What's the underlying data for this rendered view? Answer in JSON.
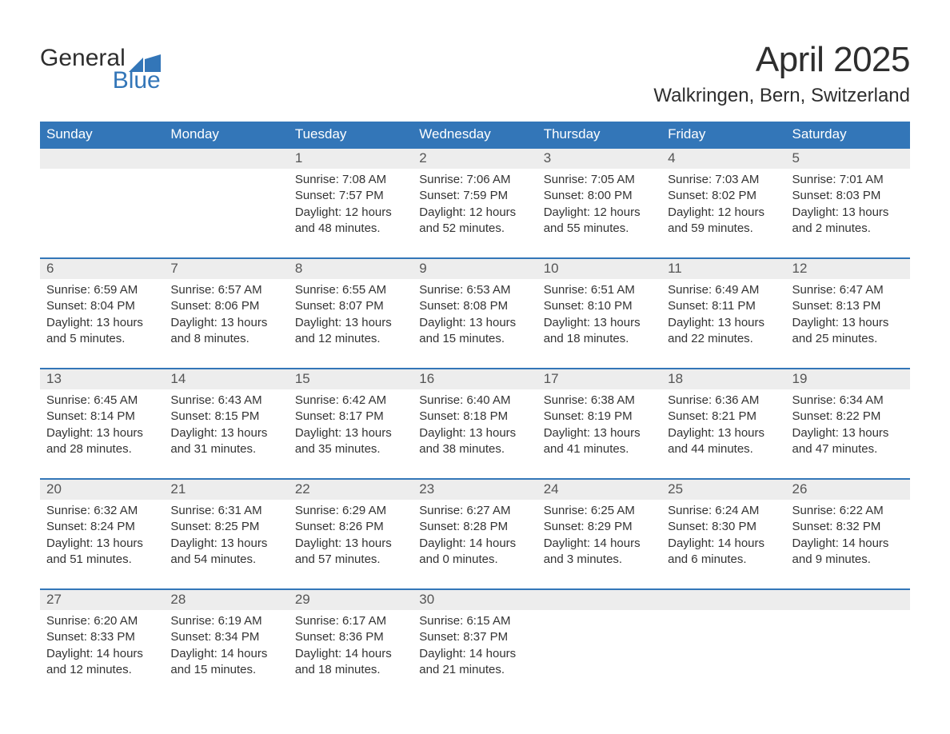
{
  "logo": {
    "text1": "General",
    "text2": "Blue",
    "flag_color": "#3376b8"
  },
  "title": "April 2025",
  "subtitle": "Walkringen, Bern, Switzerland",
  "colors": {
    "header_bg": "#3376b8",
    "header_text": "#ffffff",
    "daynum_bg": "#ededed",
    "daynum_text": "#555555",
    "body_text": "#333333",
    "week_divider": "#3376b8",
    "page_bg": "#ffffff",
    "logo_dark": "#2e2e2e",
    "logo_blue": "#3376b8"
  },
  "day_headers": [
    "Sunday",
    "Monday",
    "Tuesday",
    "Wednesday",
    "Thursday",
    "Friday",
    "Saturday"
  ],
  "weeks": [
    [
      {
        "num": "",
        "sunrise": "",
        "sunset": "",
        "daylight1": "",
        "daylight2": ""
      },
      {
        "num": "",
        "sunrise": "",
        "sunset": "",
        "daylight1": "",
        "daylight2": ""
      },
      {
        "num": "1",
        "sunrise": "Sunrise: 7:08 AM",
        "sunset": "Sunset: 7:57 PM",
        "daylight1": "Daylight: 12 hours",
        "daylight2": "and 48 minutes."
      },
      {
        "num": "2",
        "sunrise": "Sunrise: 7:06 AM",
        "sunset": "Sunset: 7:59 PM",
        "daylight1": "Daylight: 12 hours",
        "daylight2": "and 52 minutes."
      },
      {
        "num": "3",
        "sunrise": "Sunrise: 7:05 AM",
        "sunset": "Sunset: 8:00 PM",
        "daylight1": "Daylight: 12 hours",
        "daylight2": "and 55 minutes."
      },
      {
        "num": "4",
        "sunrise": "Sunrise: 7:03 AM",
        "sunset": "Sunset: 8:02 PM",
        "daylight1": "Daylight: 12 hours",
        "daylight2": "and 59 minutes."
      },
      {
        "num": "5",
        "sunrise": "Sunrise: 7:01 AM",
        "sunset": "Sunset: 8:03 PM",
        "daylight1": "Daylight: 13 hours",
        "daylight2": "and 2 minutes."
      }
    ],
    [
      {
        "num": "6",
        "sunrise": "Sunrise: 6:59 AM",
        "sunset": "Sunset: 8:04 PM",
        "daylight1": "Daylight: 13 hours",
        "daylight2": "and 5 minutes."
      },
      {
        "num": "7",
        "sunrise": "Sunrise: 6:57 AM",
        "sunset": "Sunset: 8:06 PM",
        "daylight1": "Daylight: 13 hours",
        "daylight2": "and 8 minutes."
      },
      {
        "num": "8",
        "sunrise": "Sunrise: 6:55 AM",
        "sunset": "Sunset: 8:07 PM",
        "daylight1": "Daylight: 13 hours",
        "daylight2": "and 12 minutes."
      },
      {
        "num": "9",
        "sunrise": "Sunrise: 6:53 AM",
        "sunset": "Sunset: 8:08 PM",
        "daylight1": "Daylight: 13 hours",
        "daylight2": "and 15 minutes."
      },
      {
        "num": "10",
        "sunrise": "Sunrise: 6:51 AM",
        "sunset": "Sunset: 8:10 PM",
        "daylight1": "Daylight: 13 hours",
        "daylight2": "and 18 minutes."
      },
      {
        "num": "11",
        "sunrise": "Sunrise: 6:49 AM",
        "sunset": "Sunset: 8:11 PM",
        "daylight1": "Daylight: 13 hours",
        "daylight2": "and 22 minutes."
      },
      {
        "num": "12",
        "sunrise": "Sunrise: 6:47 AM",
        "sunset": "Sunset: 8:13 PM",
        "daylight1": "Daylight: 13 hours",
        "daylight2": "and 25 minutes."
      }
    ],
    [
      {
        "num": "13",
        "sunrise": "Sunrise: 6:45 AM",
        "sunset": "Sunset: 8:14 PM",
        "daylight1": "Daylight: 13 hours",
        "daylight2": "and 28 minutes."
      },
      {
        "num": "14",
        "sunrise": "Sunrise: 6:43 AM",
        "sunset": "Sunset: 8:15 PM",
        "daylight1": "Daylight: 13 hours",
        "daylight2": "and 31 minutes."
      },
      {
        "num": "15",
        "sunrise": "Sunrise: 6:42 AM",
        "sunset": "Sunset: 8:17 PM",
        "daylight1": "Daylight: 13 hours",
        "daylight2": "and 35 minutes."
      },
      {
        "num": "16",
        "sunrise": "Sunrise: 6:40 AM",
        "sunset": "Sunset: 8:18 PM",
        "daylight1": "Daylight: 13 hours",
        "daylight2": "and 38 minutes."
      },
      {
        "num": "17",
        "sunrise": "Sunrise: 6:38 AM",
        "sunset": "Sunset: 8:19 PM",
        "daylight1": "Daylight: 13 hours",
        "daylight2": "and 41 minutes."
      },
      {
        "num": "18",
        "sunrise": "Sunrise: 6:36 AM",
        "sunset": "Sunset: 8:21 PM",
        "daylight1": "Daylight: 13 hours",
        "daylight2": "and 44 minutes."
      },
      {
        "num": "19",
        "sunrise": "Sunrise: 6:34 AM",
        "sunset": "Sunset: 8:22 PM",
        "daylight1": "Daylight: 13 hours",
        "daylight2": "and 47 minutes."
      }
    ],
    [
      {
        "num": "20",
        "sunrise": "Sunrise: 6:32 AM",
        "sunset": "Sunset: 8:24 PM",
        "daylight1": "Daylight: 13 hours",
        "daylight2": "and 51 minutes."
      },
      {
        "num": "21",
        "sunrise": "Sunrise: 6:31 AM",
        "sunset": "Sunset: 8:25 PM",
        "daylight1": "Daylight: 13 hours",
        "daylight2": "and 54 minutes."
      },
      {
        "num": "22",
        "sunrise": "Sunrise: 6:29 AM",
        "sunset": "Sunset: 8:26 PM",
        "daylight1": "Daylight: 13 hours",
        "daylight2": "and 57 minutes."
      },
      {
        "num": "23",
        "sunrise": "Sunrise: 6:27 AM",
        "sunset": "Sunset: 8:28 PM",
        "daylight1": "Daylight: 14 hours",
        "daylight2": "and 0 minutes."
      },
      {
        "num": "24",
        "sunrise": "Sunrise: 6:25 AM",
        "sunset": "Sunset: 8:29 PM",
        "daylight1": "Daylight: 14 hours",
        "daylight2": "and 3 minutes."
      },
      {
        "num": "25",
        "sunrise": "Sunrise: 6:24 AM",
        "sunset": "Sunset: 8:30 PM",
        "daylight1": "Daylight: 14 hours",
        "daylight2": "and 6 minutes."
      },
      {
        "num": "26",
        "sunrise": "Sunrise: 6:22 AM",
        "sunset": "Sunset: 8:32 PM",
        "daylight1": "Daylight: 14 hours",
        "daylight2": "and 9 minutes."
      }
    ],
    [
      {
        "num": "27",
        "sunrise": "Sunrise: 6:20 AM",
        "sunset": "Sunset: 8:33 PM",
        "daylight1": "Daylight: 14 hours",
        "daylight2": "and 12 minutes."
      },
      {
        "num": "28",
        "sunrise": "Sunrise: 6:19 AM",
        "sunset": "Sunset: 8:34 PM",
        "daylight1": "Daylight: 14 hours",
        "daylight2": "and 15 minutes."
      },
      {
        "num": "29",
        "sunrise": "Sunrise: 6:17 AM",
        "sunset": "Sunset: 8:36 PM",
        "daylight1": "Daylight: 14 hours",
        "daylight2": "and 18 minutes."
      },
      {
        "num": "30",
        "sunrise": "Sunrise: 6:15 AM",
        "sunset": "Sunset: 8:37 PM",
        "daylight1": "Daylight: 14 hours",
        "daylight2": "and 21 minutes."
      },
      {
        "num": "",
        "sunrise": "",
        "sunset": "",
        "daylight1": "",
        "daylight2": ""
      },
      {
        "num": "",
        "sunrise": "",
        "sunset": "",
        "daylight1": "",
        "daylight2": ""
      },
      {
        "num": "",
        "sunrise": "",
        "sunset": "",
        "daylight1": "",
        "daylight2": ""
      }
    ]
  ]
}
